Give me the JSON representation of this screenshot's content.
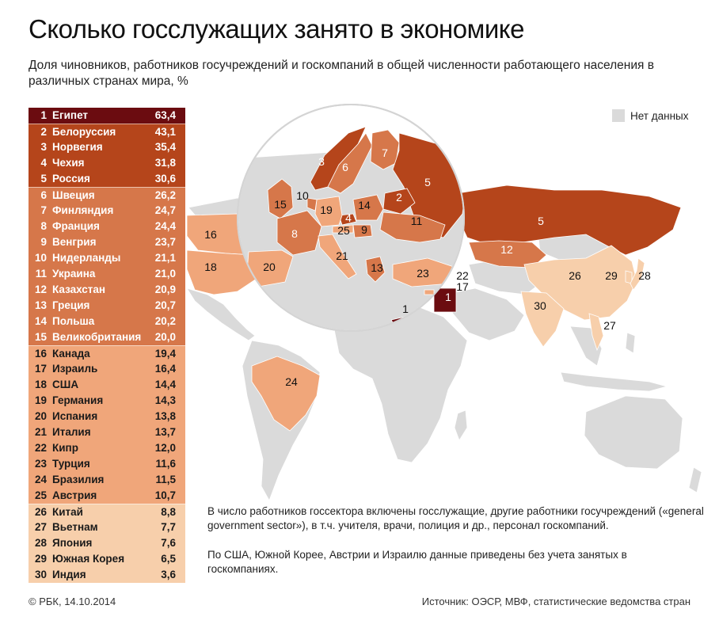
{
  "title": "Сколько госслужащих занято в экономике",
  "subtitle": "Доля чиновников, работников госучреждений и госкомпаний в общей численности работающего населения в различных странах мира, %",
  "legend": {
    "no_data": "Нет данных"
  },
  "colors": {
    "top1": "#6b0c10",
    "tier1": "#b5451b",
    "tier2": "#d6774a",
    "tier3": "#f0a67a",
    "tier4": "#f7cfab",
    "no_data": "#dadada"
  },
  "chart_data": {
    "type": "table",
    "columns": [
      "rank",
      "country",
      "value"
    ],
    "rows": [
      {
        "rank": "1",
        "country": "Египет",
        "value": "63,4",
        "v": 63.4,
        "tier": "top1"
      },
      {
        "rank": "2",
        "country": "Белоруссия",
        "value": "43,1",
        "v": 43.1,
        "tier": "tier1"
      },
      {
        "rank": "3",
        "country": "Норвегия",
        "value": "35,4",
        "v": 35.4,
        "tier": "tier1"
      },
      {
        "rank": "4",
        "country": "Чехия",
        "value": "31,8",
        "v": 31.8,
        "tier": "tier1"
      },
      {
        "rank": "5",
        "country": "Россия",
        "value": "30,6",
        "v": 30.6,
        "tier": "tier1"
      },
      {
        "rank": "6",
        "country": "Швеция",
        "value": "26,2",
        "v": 26.2,
        "tier": "tier2"
      },
      {
        "rank": "7",
        "country": "Финляндия",
        "value": "24,7",
        "v": 24.7,
        "tier": "tier2"
      },
      {
        "rank": "8",
        "country": "Франция",
        "value": "24,4",
        "v": 24.4,
        "tier": "tier2"
      },
      {
        "rank": "9",
        "country": "Венгрия",
        "value": "23,7",
        "v": 23.7,
        "tier": "tier2"
      },
      {
        "rank": "10",
        "country": "Нидерланды",
        "value": "21,1",
        "v": 21.1,
        "tier": "tier2"
      },
      {
        "rank": "11",
        "country": "Украина",
        "value": "21,0",
        "v": 21.0,
        "tier": "tier2"
      },
      {
        "rank": "12",
        "country": "Казахстан",
        "value": "20,9",
        "v": 20.9,
        "tier": "tier2"
      },
      {
        "rank": "13",
        "country": "Греция",
        "value": "20,7",
        "v": 20.7,
        "tier": "tier2"
      },
      {
        "rank": "14",
        "country": "Польша",
        "value": "20,2",
        "v": 20.2,
        "tier": "tier2"
      },
      {
        "rank": "15",
        "country": "Великобритания",
        "value": "20,0",
        "v": 20.0,
        "tier": "tier2"
      },
      {
        "rank": "16",
        "country": "Канада",
        "value": "19,4",
        "v": 19.4,
        "tier": "tier3"
      },
      {
        "rank": "17",
        "country": "Израиль",
        "value": "16,4",
        "v": 16.4,
        "tier": "tier3"
      },
      {
        "rank": "18",
        "country": "США",
        "value": "14,4",
        "v": 14.4,
        "tier": "tier3"
      },
      {
        "rank": "19",
        "country": "Германия",
        "value": "14,3",
        "v": 14.3,
        "tier": "tier3"
      },
      {
        "rank": "20",
        "country": "Испания",
        "value": "13,8",
        "v": 13.8,
        "tier": "tier3"
      },
      {
        "rank": "21",
        "country": "Италия",
        "value": "13,7",
        "v": 13.7,
        "tier": "tier3"
      },
      {
        "rank": "22",
        "country": "Кипр",
        "value": "12,0",
        "v": 12.0,
        "tier": "tier3"
      },
      {
        "rank": "23",
        "country": "Турция",
        "value": "11,6",
        "v": 11.6,
        "tier": "tier3"
      },
      {
        "rank": "24",
        "country": "Бразилия",
        "value": "11,5",
        "v": 11.5,
        "tier": "tier3"
      },
      {
        "rank": "25",
        "country": "Австрия",
        "value": "10,7",
        "v": 10.7,
        "tier": "tier3"
      },
      {
        "rank": "26",
        "country": "Китай",
        "value": "8,8",
        "v": 8.8,
        "tier": "tier4"
      },
      {
        "rank": "27",
        "country": "Вьетнам",
        "value": "7,7",
        "v": 7.7,
        "tier": "tier4"
      },
      {
        "rank": "28",
        "country": "Япония",
        "value": "7,6",
        "v": 7.6,
        "tier": "tier4"
      },
      {
        "rank": "29",
        "country": "Южная Корея",
        "value": "6,5",
        "v": 6.5,
        "tier": "tier4"
      },
      {
        "rank": "30",
        "country": "Индия",
        "value": "3,6",
        "v": 3.6,
        "tier": "tier4"
      }
    ]
  },
  "notes": {
    "note1": "В число работников госсектора включены госслужащие, другие работники госучреждений («general government sector»), в т.ч. учителя, врачи, полиция и др., персонал госкомпаний.",
    "note2": "По США, Южной Корее, Австрии и Израилю данные приведены без учета занятых в госкомпаниях."
  },
  "footer": {
    "left": "© РБК, 14.10.2014",
    "right": "Источник: ОЭСР, МВФ, статистические ведомства стран"
  }
}
